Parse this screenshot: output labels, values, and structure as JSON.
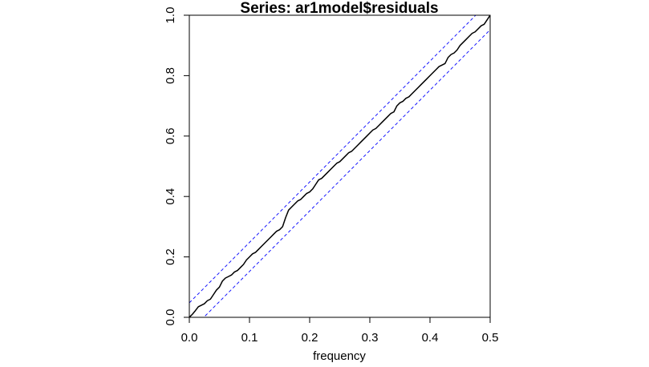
{
  "chart_data": {
    "type": "line",
    "title": "Series:  ar1model$residuals",
    "xlabel": "frequency",
    "ylabel": "",
    "xlim": [
      0,
      0.5
    ],
    "ylim": [
      0,
      1
    ],
    "x_ticks": [
      "0.0",
      "0.1",
      "0.2",
      "0.3",
      "0.4",
      "0.5"
    ],
    "y_ticks": [
      "0.0",
      "0.2",
      "0.4",
      "0.6",
      "0.8",
      "1.0"
    ],
    "grid": false,
    "legend": "none",
    "colors": {
      "series": "#000000",
      "bands": "#0000ff"
    },
    "series": [
      {
        "style": "solid",
        "x": [
          0,
          0.005,
          0.01,
          0.015,
          0.02,
          0.025,
          0.03,
          0.035,
          0.04,
          0.045,
          0.05,
          0.055,
          0.06,
          0.065,
          0.07,
          0.075,
          0.08,
          0.085,
          0.09,
          0.095,
          0.1,
          0.105,
          0.11,
          0.115,
          0.12,
          0.125,
          0.13,
          0.135,
          0.14,
          0.145,
          0.15,
          0.155,
          0.16,
          0.165,
          0.17,
          0.175,
          0.18,
          0.185,
          0.19,
          0.195,
          0.2,
          0.205,
          0.21,
          0.215,
          0.22,
          0.225,
          0.23,
          0.235,
          0.24,
          0.245,
          0.25,
          0.255,
          0.26,
          0.265,
          0.27,
          0.275,
          0.28,
          0.285,
          0.29,
          0.295,
          0.3,
          0.305,
          0.31,
          0.315,
          0.32,
          0.325,
          0.33,
          0.335,
          0.34,
          0.345,
          0.35,
          0.355,
          0.36,
          0.365,
          0.37,
          0.375,
          0.38,
          0.385,
          0.39,
          0.395,
          0.4,
          0.405,
          0.41,
          0.415,
          0.42,
          0.425,
          0.43,
          0.435,
          0.44,
          0.445,
          0.45,
          0.455,
          0.46,
          0.465,
          0.47,
          0.475,
          0.48,
          0.485,
          0.49,
          0.495,
          0.5
        ],
        "y": [
          0,
          0.01,
          0.022,
          0.035,
          0.04,
          0.045,
          0.055,
          0.06,
          0.075,
          0.09,
          0.1,
          0.12,
          0.13,
          0.135,
          0.14,
          0.15,
          0.155,
          0.165,
          0.175,
          0.19,
          0.2,
          0.21,
          0.215,
          0.225,
          0.235,
          0.245,
          0.255,
          0.265,
          0.275,
          0.285,
          0.29,
          0.3,
          0.33,
          0.355,
          0.365,
          0.375,
          0.385,
          0.39,
          0.4,
          0.41,
          0.415,
          0.425,
          0.44,
          0.455,
          0.46,
          0.47,
          0.48,
          0.49,
          0.5,
          0.51,
          0.515,
          0.525,
          0.535,
          0.545,
          0.55,
          0.56,
          0.57,
          0.58,
          0.59,
          0.6,
          0.61,
          0.62,
          0.625,
          0.635,
          0.645,
          0.655,
          0.665,
          0.675,
          0.68,
          0.7,
          0.71,
          0.715,
          0.725,
          0.73,
          0.74,
          0.75,
          0.76,
          0.77,
          0.78,
          0.79,
          0.8,
          0.81,
          0.82,
          0.83,
          0.835,
          0.84,
          0.86,
          0.87,
          0.875,
          0.885,
          0.9,
          0.91,
          0.92,
          0.93,
          0.94,
          0.945,
          0.955,
          0.965,
          0.97,
          0.985,
          1.0
        ]
      },
      {
        "style": "dashed",
        "x": [
          0,
          0.5
        ],
        "y": [
          0.048,
          1.048
        ]
      },
      {
        "style": "dashed",
        "x": [
          0,
          0.5
        ],
        "y": [
          -0.048,
          0.952
        ]
      }
    ]
  }
}
